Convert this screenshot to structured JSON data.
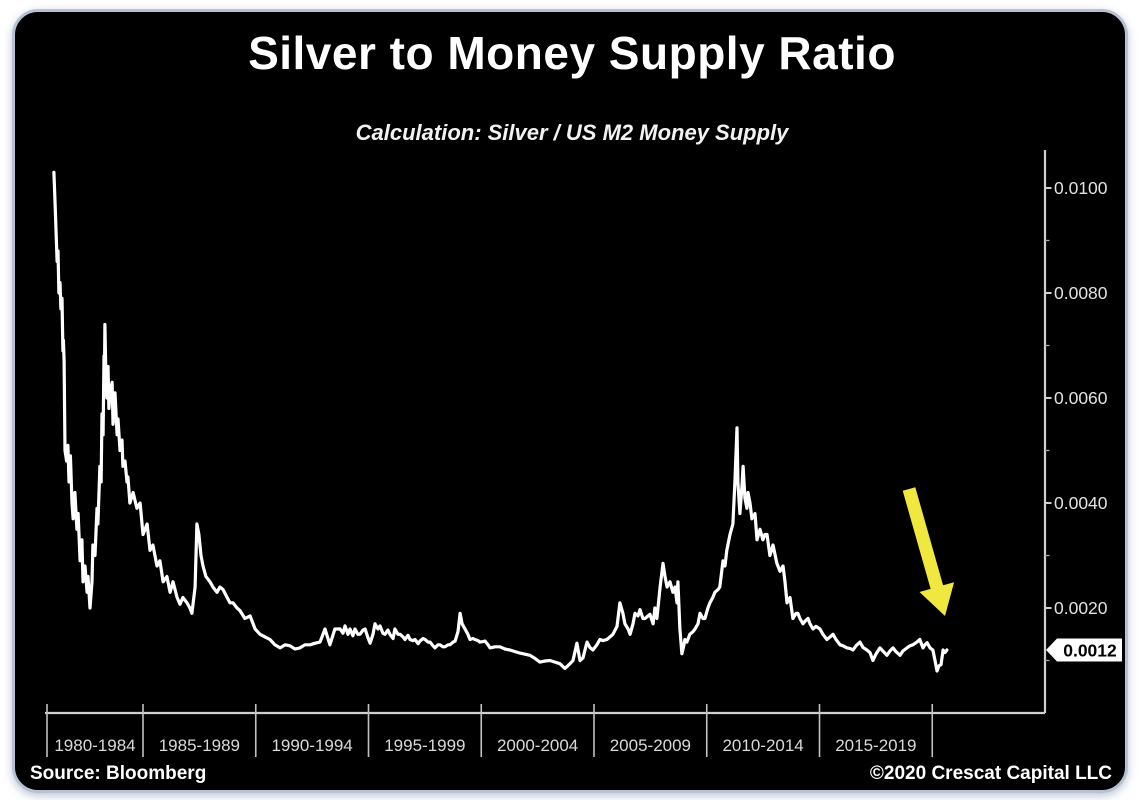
{
  "header": {
    "title": "Silver to Money Supply Ratio",
    "subtitle": "Calculation: Silver / US M2 Money Supply"
  },
  "footer": {
    "source": "Source: Bloomberg",
    "copyright": "©2020 Crescat Capital LLC"
  },
  "annotations": {
    "arrow_name": "downtrend-arrow",
    "arrow_color": "#f0e73f",
    "last_value_label": "0.0012",
    "last_value": 0.0012
  },
  "colors": {
    "panel_bg": "#000000",
    "page_bg": "#ffffff",
    "line": "#ffffff",
    "axis": "#cfcfcf",
    "divider": "#c2c2c2",
    "tag_bg": "#ffffff",
    "tag_text": "#000000"
  },
  "chart_data": {
    "type": "line",
    "title": "Silver to Money Supply Ratio",
    "series_name": "Silver / US M2 Money Supply",
    "legend": "none",
    "grid": "off",
    "x_axis": {
      "group_labels": [
        "1980-1984",
        "1985-1989",
        "1990-1994",
        "1995-1999",
        "2000-2004",
        "2005-2009",
        "2010-2014",
        "2015-2019"
      ],
      "boundary_years": [
        1985,
        1990,
        1995,
        2000,
        2005,
        2010,
        2015,
        2020
      ],
      "range_years": [
        1980.7,
        2024.5
      ]
    },
    "y_axis": {
      "side": "right",
      "major_ticks": [
        0.01,
        0.008,
        0.006,
        0.004,
        0.002
      ],
      "major_tick_labels": [
        "0.0100",
        "0.0080",
        "0.0060",
        "0.0040",
        "0.0020"
      ],
      "minor_ticks": [
        0.009,
        0.007,
        0.005,
        0.003,
        0.001
      ],
      "range": [
        0,
        0.01075
      ]
    },
    "points": [
      [
        1981.05,
        0.0103
      ],
      [
        1981.1,
        0.0097
      ],
      [
        1981.14,
        0.0092
      ],
      [
        1981.19,
        0.0086
      ],
      [
        1981.23,
        0.0088
      ],
      [
        1981.27,
        0.008
      ],
      [
        1981.32,
        0.0082
      ],
      [
        1981.36,
        0.0077
      ],
      [
        1981.41,
        0.0079
      ],
      [
        1981.45,
        0.0069
      ],
      [
        1981.47,
        0.0071
      ],
      [
        1981.5,
        0.0067
      ],
      [
        1981.54,
        0.005
      ],
      [
        1981.61,
        0.0048
      ],
      [
        1981.67,
        0.0051
      ],
      [
        1981.72,
        0.0044
      ],
      [
        1981.78,
        0.0049
      ],
      [
        1981.85,
        0.004
      ],
      [
        1981.9,
        0.0037
      ],
      [
        1981.98,
        0.0042
      ],
      [
        1982.07,
        0.0035
      ],
      [
        1982.12,
        0.0038
      ],
      [
        1982.21,
        0.0029
      ],
      [
        1982.29,
        0.0033
      ],
      [
        1982.34,
        0.0025
      ],
      [
        1982.43,
        0.0028
      ],
      [
        1982.52,
        0.0023
      ],
      [
        1982.56,
        0.0026
      ],
      [
        1982.65,
        0.002
      ],
      [
        1982.74,
        0.0025
      ],
      [
        1982.78,
        0.0032
      ],
      [
        1982.87,
        0.003
      ],
      [
        1982.96,
        0.0039
      ],
      [
        1983.0,
        0.0036
      ],
      [
        1983.09,
        0.0047
      ],
      [
        1983.14,
        0.0044
      ],
      [
        1983.18,
        0.0057
      ],
      [
        1983.23,
        0.0053
      ],
      [
        1983.27,
        0.0068
      ],
      [
        1983.29,
        0.0063
      ],
      [
        1983.31,
        0.0074
      ],
      [
        1983.36,
        0.0063
      ],
      [
        1983.4,
        0.006
      ],
      [
        1983.45,
        0.0066
      ],
      [
        1983.49,
        0.0058
      ],
      [
        1983.54,
        0.0061
      ],
      [
        1983.63,
        0.0063
      ],
      [
        1983.67,
        0.0055
      ],
      [
        1983.76,
        0.0061
      ],
      [
        1983.85,
        0.0053
      ],
      [
        1983.89,
        0.0056
      ],
      [
        1983.98,
        0.005
      ],
      [
        1984.07,
        0.0052
      ],
      [
        1984.11,
        0.0047
      ],
      [
        1984.2,
        0.0048
      ],
      [
        1984.29,
        0.0044
      ],
      [
        1984.33,
        0.0045
      ],
      [
        1984.42,
        0.004
      ],
      [
        1984.56,
        0.0042
      ],
      [
        1984.73,
        0.0039
      ],
      [
        1984.87,
        0.004
      ],
      [
        1985.0,
        0.0034
      ],
      [
        1985.18,
        0.0036
      ],
      [
        1985.31,
        0.0031
      ],
      [
        1985.44,
        0.0032
      ],
      [
        1985.62,
        0.0028
      ],
      [
        1985.75,
        0.0029
      ],
      [
        1985.89,
        0.0025
      ],
      [
        1986.06,
        0.0026
      ],
      [
        1986.2,
        0.0023
      ],
      [
        1986.33,
        0.0025
      ],
      [
        1986.51,
        0.0022
      ],
      [
        1986.64,
        0.00207
      ],
      [
        1986.77,
        0.0022
      ],
      [
        1986.95,
        0.0021
      ],
      [
        1987.08,
        0.002
      ],
      [
        1987.17,
        0.0019
      ],
      [
        1987.31,
        0.0024
      ],
      [
        1987.39,
        0.0036
      ],
      [
        1987.48,
        0.0034
      ],
      [
        1987.57,
        0.003
      ],
      [
        1987.66,
        0.0028
      ],
      [
        1987.79,
        0.0026
      ],
      [
        1987.97,
        0.0025
      ],
      [
        1988.1,
        0.0024
      ],
      [
        1988.28,
        0.0023
      ],
      [
        1988.41,
        0.0024
      ],
      [
        1988.55,
        0.00235
      ],
      [
        1988.73,
        0.0022
      ],
      [
        1988.86,
        0.0021
      ],
      [
        1988.99,
        0.0021
      ],
      [
        1989.17,
        0.002
      ],
      [
        1989.3,
        0.00195
      ],
      [
        1989.52,
        0.0018
      ],
      [
        1989.75,
        0.00185
      ],
      [
        1989.97,
        0.0016
      ],
      [
        1990.19,
        0.0015
      ],
      [
        1990.41,
        0.00145
      ],
      [
        1990.63,
        0.0014
      ],
      [
        1990.85,
        0.0013
      ],
      [
        1991.08,
        0.00124
      ],
      [
        1991.3,
        0.0013
      ],
      [
        1991.52,
        0.00128
      ],
      [
        1991.74,
        0.00122
      ],
      [
        1991.96,
        0.00124
      ],
      [
        1992.18,
        0.0013
      ],
      [
        1992.41,
        0.0013
      ],
      [
        1992.63,
        0.00133
      ],
      [
        1992.85,
        0.00135
      ],
      [
        1993.07,
        0.0016
      ],
      [
        1993.29,
        0.0013
      ],
      [
        1993.51,
        0.0016
      ],
      [
        1993.74,
        0.0016
      ],
      [
        1993.87,
        0.00152
      ],
      [
        1993.96,
        0.00166
      ],
      [
        1994.09,
        0.0015
      ],
      [
        1994.18,
        0.0016
      ],
      [
        1994.31,
        0.00147
      ],
      [
        1994.4,
        0.0016
      ],
      [
        1994.53,
        0.0015
      ],
      [
        1994.62,
        0.0015
      ],
      [
        1994.76,
        0.00158
      ],
      [
        1994.85,
        0.0016
      ],
      [
        1994.98,
        0.00143
      ],
      [
        1995.07,
        0.00133
      ],
      [
        1995.2,
        0.0015
      ],
      [
        1995.29,
        0.0017
      ],
      [
        1995.42,
        0.0016
      ],
      [
        1995.51,
        0.00166
      ],
      [
        1995.64,
        0.00152
      ],
      [
        1995.73,
        0.0015
      ],
      [
        1995.86,
        0.00158
      ],
      [
        1995.95,
        0.0015
      ],
      [
        1996.09,
        0.00142
      ],
      [
        1996.17,
        0.0016
      ],
      [
        1996.31,
        0.0015
      ],
      [
        1996.4,
        0.0015
      ],
      [
        1996.53,
        0.00145
      ],
      [
        1996.62,
        0.0014
      ],
      [
        1996.75,
        0.00148
      ],
      [
        1996.84,
        0.0014
      ],
      [
        1996.97,
        0.00138
      ],
      [
        1997.06,
        0.0014
      ],
      [
        1997.2,
        0.00132
      ],
      [
        1997.28,
        0.00137
      ],
      [
        1997.42,
        0.00142
      ],
      [
        1997.51,
        0.0014
      ],
      [
        1997.64,
        0.00135
      ],
      [
        1997.73,
        0.00135
      ],
      [
        1997.86,
        0.00128
      ],
      [
        1997.95,
        0.00124
      ],
      [
        1998.08,
        0.0013
      ],
      [
        1998.17,
        0.0013
      ],
      [
        1998.3,
        0.00126
      ],
      [
        1998.39,
        0.00126
      ],
      [
        1998.53,
        0.0013
      ],
      [
        1998.61,
        0.0013
      ],
      [
        1998.75,
        0.00135
      ],
      [
        1998.84,
        0.00137
      ],
      [
        1998.97,
        0.00155
      ],
      [
        1999.06,
        0.0019
      ],
      [
        1999.15,
        0.0017
      ],
      [
        1999.28,
        0.0016
      ],
      [
        1999.41,
        0.0015
      ],
      [
        1999.5,
        0.0014
      ],
      [
        1999.63,
        0.00142
      ],
      [
        1999.72,
        0.0014
      ],
      [
        1999.86,
        0.00138
      ],
      [
        1999.94,
        0.00135
      ],
      [
        2000.08,
        0.00136
      ],
      [
        2000.17,
        0.00137
      ],
      [
        2000.3,
        0.0013
      ],
      [
        2000.39,
        0.00124
      ],
      [
        2000.61,
        0.00126
      ],
      [
        2000.83,
        0.00126
      ],
      [
        2001.05,
        0.00122
      ],
      [
        2001.27,
        0.0012
      ],
      [
        2001.5,
        0.00117
      ],
      [
        2001.72,
        0.00114
      ],
      [
        2001.94,
        0.00112
      ],
      [
        2002.16,
        0.0011
      ],
      [
        2002.38,
        0.00104
      ],
      [
        2002.6,
        0.00097
      ],
      [
        2002.83,
        0.00099
      ],
      [
        2003.05,
        0.001
      ],
      [
        2003.27,
        0.00097
      ],
      [
        2003.49,
        0.00094
      ],
      [
        2003.71,
        0.00085
      ],
      [
        2003.84,
        0.0009
      ],
      [
        2003.93,
        0.00094
      ],
      [
        2004.07,
        0.001
      ],
      [
        2004.24,
        0.00133
      ],
      [
        2004.38,
        0.001
      ],
      [
        2004.51,
        0.00105
      ],
      [
        2004.69,
        0.00135
      ],
      [
        2004.82,
        0.00125
      ],
      [
        2004.95,
        0.0012
      ],
      [
        2005.13,
        0.0013
      ],
      [
        2005.26,
        0.0014
      ],
      [
        2005.4,
        0.00138
      ],
      [
        2005.57,
        0.0014
      ],
      [
        2005.71,
        0.00145
      ],
      [
        2005.84,
        0.0015
      ],
      [
        2006.02,
        0.00165
      ],
      [
        2006.15,
        0.0021
      ],
      [
        2006.28,
        0.0019
      ],
      [
        2006.37,
        0.0017
      ],
      [
        2006.51,
        0.0016
      ],
      [
        2006.6,
        0.0015
      ],
      [
        2006.73,
        0.0017
      ],
      [
        2006.82,
        0.0019
      ],
      [
        2006.95,
        0.00185
      ],
      [
        2007.04,
        0.00197
      ],
      [
        2007.17,
        0.0018
      ],
      [
        2007.26,
        0.0018
      ],
      [
        2007.4,
        0.00185
      ],
      [
        2007.48,
        0.00188
      ],
      [
        2007.62,
        0.0017
      ],
      [
        2007.7,
        0.002
      ],
      [
        2007.79,
        0.0018
      ],
      [
        2007.93,
        0.0024
      ],
      [
        2008.06,
        0.00285
      ],
      [
        2008.15,
        0.0026
      ],
      [
        2008.24,
        0.0024
      ],
      [
        2008.37,
        0.0025
      ],
      [
        2008.5,
        0.0023
      ],
      [
        2008.59,
        0.0024
      ],
      [
        2008.68,
        0.0021
      ],
      [
        2008.72,
        0.0025
      ],
      [
        2008.81,
        0.0016
      ],
      [
        2008.9,
        0.00113
      ],
      [
        2008.99,
        0.0013
      ],
      [
        2009.03,
        0.0014
      ],
      [
        2009.12,
        0.00135
      ],
      [
        2009.25,
        0.0015
      ],
      [
        2009.39,
        0.00155
      ],
      [
        2009.48,
        0.0016
      ],
      [
        2009.61,
        0.0017
      ],
      [
        2009.7,
        0.0019
      ],
      [
        2009.83,
        0.0018
      ],
      [
        2009.92,
        0.0018
      ],
      [
        2010.05,
        0.002
      ],
      [
        2010.14,
        0.0021
      ],
      [
        2010.27,
        0.0022
      ],
      [
        2010.36,
        0.0023
      ],
      [
        2010.5,
        0.00235
      ],
      [
        2010.58,
        0.0024
      ],
      [
        2010.72,
        0.0029
      ],
      [
        2010.81,
        0.0028
      ],
      [
        2010.89,
        0.0031
      ],
      [
        2011.03,
        0.0034
      ],
      [
        2011.16,
        0.0036
      ],
      [
        2011.25,
        0.0044
      ],
      [
        2011.34,
        0.00543
      ],
      [
        2011.38,
        0.0044
      ],
      [
        2011.47,
        0.0038
      ],
      [
        2011.56,
        0.0043
      ],
      [
        2011.61,
        0.0047
      ],
      [
        2011.69,
        0.0041
      ],
      [
        2011.78,
        0.0039
      ],
      [
        2011.83,
        0.0042
      ],
      [
        2011.92,
        0.004
      ],
      [
        2012.0,
        0.0037
      ],
      [
        2012.14,
        0.0038
      ],
      [
        2012.23,
        0.0033
      ],
      [
        2012.36,
        0.0035
      ],
      [
        2012.49,
        0.0033
      ],
      [
        2012.58,
        0.0034
      ],
      [
        2012.67,
        0.0034
      ],
      [
        2012.8,
        0.003
      ],
      [
        2012.94,
        0.0032
      ],
      [
        2013.11,
        0.00285
      ],
      [
        2013.25,
        0.0027
      ],
      [
        2013.38,
        0.0028
      ],
      [
        2013.47,
        0.0025
      ],
      [
        2013.56,
        0.0021
      ],
      [
        2013.69,
        0.0022
      ],
      [
        2013.82,
        0.0018
      ],
      [
        2013.96,
        0.0019
      ],
      [
        2014.04,
        0.0019
      ],
      [
        2014.13,
        0.0018
      ],
      [
        2014.27,
        0.0017
      ],
      [
        2014.36,
        0.00175
      ],
      [
        2014.49,
        0.0018
      ],
      [
        2014.58,
        0.0017
      ],
      [
        2014.71,
        0.0016
      ],
      [
        2014.84,
        0.00165
      ],
      [
        2015.02,
        0.0016
      ],
      [
        2015.15,
        0.0015
      ],
      [
        2015.33,
        0.0014
      ],
      [
        2015.47,
        0.00145
      ],
      [
        2015.6,
        0.0015
      ],
      [
        2015.73,
        0.0014
      ],
      [
        2015.91,
        0.0013
      ],
      [
        2016.04,
        0.00128
      ],
      [
        2016.22,
        0.00124
      ],
      [
        2016.35,
        0.00123
      ],
      [
        2016.48,
        0.0012
      ],
      [
        2016.62,
        0.00128
      ],
      [
        2016.79,
        0.00135
      ],
      [
        2016.93,
        0.00125
      ],
      [
        2017.1,
        0.0012
      ],
      [
        2017.24,
        0.00115
      ],
      [
        2017.37,
        0.001
      ],
      [
        2017.5,
        0.00112
      ],
      [
        2017.68,
        0.00124
      ],
      [
        2017.81,
        0.00118
      ],
      [
        2017.99,
        0.0011
      ],
      [
        2018.12,
        0.00118
      ],
      [
        2018.26,
        0.00124
      ],
      [
        2018.39,
        0.00117
      ],
      [
        2018.57,
        0.0011
      ],
      [
        2018.7,
        0.00118
      ],
      [
        2018.88,
        0.00124
      ],
      [
        2019.01,
        0.00128
      ],
      [
        2019.14,
        0.0013
      ],
      [
        2019.32,
        0.00135
      ],
      [
        2019.45,
        0.0014
      ],
      [
        2019.59,
        0.00124
      ],
      [
        2019.68,
        0.0013
      ],
      [
        2019.77,
        0.00134
      ],
      [
        2019.9,
        0.00124
      ],
      [
        2020.03,
        0.0012
      ],
      [
        2020.12,
        0.001
      ],
      [
        2020.21,
        0.0008
      ],
      [
        2020.3,
        0.0009
      ],
      [
        2020.39,
        0.00092
      ],
      [
        2020.48,
        0.0012
      ],
      [
        2020.56,
        0.00115
      ],
      [
        2020.65,
        0.0012
      ]
    ]
  }
}
